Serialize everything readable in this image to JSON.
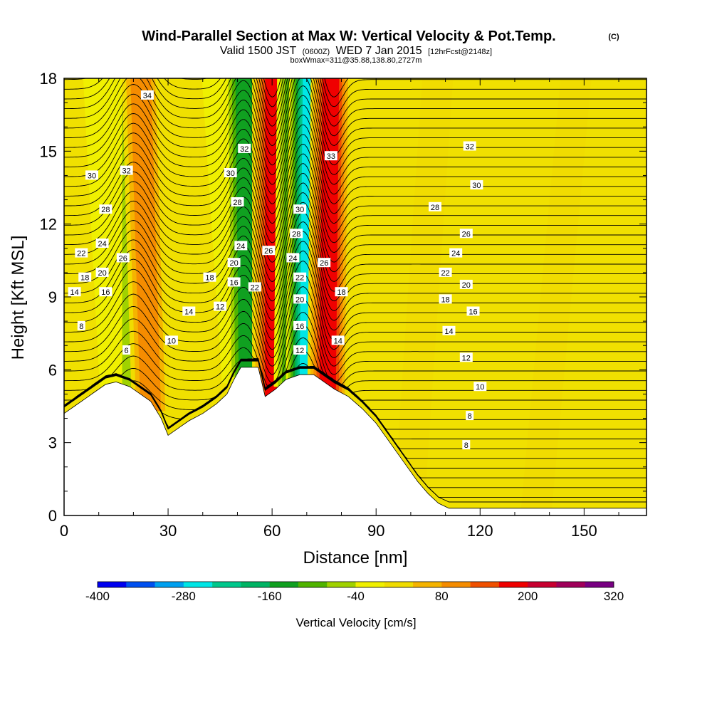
{
  "chart_data": {
    "type": "heatmap",
    "title": "Wind-Parallel Section at Max W: Vertical Velocity & Pot.Temp.",
    "title_mark": "(C)",
    "subtitle": {
      "valid": "Valid 1500 JST",
      "utc": "(0600Z)",
      "date": "WED 7 Jan 2015",
      "fcst": "[12hrFcst@2148z]",
      "box": "boxWmax=311@35.88,138.80,2727m"
    },
    "xlabel": "Distance [nm]",
    "ylabel": "Height [Kft MSL]",
    "xlim": [
      0,
      168
    ],
    "ylim": [
      0,
      18
    ],
    "x_ticks": [
      0,
      30,
      60,
      90,
      120,
      150
    ],
    "x_tick_labels": [
      "0",
      "30",
      "60",
      "90",
      "120",
      "150"
    ],
    "y_ticks": [
      0,
      3,
      6,
      9,
      12,
      15,
      18
    ],
    "y_tick_labels": [
      "0",
      "3",
      "6",
      "9",
      "12",
      "15",
      "18"
    ],
    "colorbar": {
      "label": "Vertical Velocity [cm/s]",
      "levels": [
        -400,
        -360,
        -320,
        -280,
        -240,
        -200,
        -160,
        -120,
        -80,
        -40,
        0,
        40,
        80,
        120,
        160,
        200,
        240,
        280,
        320
      ],
      "colors": [
        "#0000f0",
        "#0050f0",
        "#00a0f0",
        "#00e6e6",
        "#00c88c",
        "#00b464",
        "#10a020",
        "#50b400",
        "#a0d200",
        "#f0f000",
        "#f0dc00",
        "#f5b400",
        "#f58c00",
        "#f05000",
        "#f00000",
        "#c80030",
        "#a0005a",
        "#780082"
      ],
      "tick_labels": [
        "-400",
        "-280",
        "-160",
        "-40",
        "80",
        "200",
        "320"
      ],
      "tick_values": [
        -400,
        -280,
        -160,
        -40,
        80,
        200,
        320
      ]
    },
    "vertical_velocity_bands": [
      {
        "x_base": 15,
        "x_top": 10,
        "value": -70
      },
      {
        "x_base": 20,
        "x_top": 20,
        "value": -90
      },
      {
        "x_base": 25,
        "x_top": 22,
        "value": 140
      },
      {
        "x_base": 50,
        "x_top": 44,
        "value": -60
      },
      {
        "x_base": 53,
        "x_top": 52,
        "value": -180
      },
      {
        "x_base": 60,
        "x_top": 60,
        "value": 200
      },
      {
        "x_base": 66,
        "x_top": 67,
        "value": -150
      },
      {
        "x_base": 70,
        "x_top": 71,
        "value": -300
      },
      {
        "x_base": 76,
        "x_top": 77,
        "value": 220
      },
      {
        "x_base": 100,
        "x_top": 108,
        "value": 60
      },
      {
        "x_base": 136,
        "x_top": 148,
        "value": 60
      }
    ],
    "terrain": [
      {
        "x": 0,
        "z": 4.2
      },
      {
        "x": 3,
        "z": 4.5
      },
      {
        "x": 6,
        "z": 4.8
      },
      {
        "x": 9,
        "z": 5.1
      },
      {
        "x": 12,
        "z": 5.4
      },
      {
        "x": 15,
        "z": 5.5
      },
      {
        "x": 19,
        "z": 5.3
      },
      {
        "x": 22,
        "z": 5.0
      },
      {
        "x": 25,
        "z": 4.7
      },
      {
        "x": 28,
        "z": 4.0
      },
      {
        "x": 30,
        "z": 3.3
      },
      {
        "x": 33,
        "z": 3.6
      },
      {
        "x": 36,
        "z": 3.9
      },
      {
        "x": 40,
        "z": 4.2
      },
      {
        "x": 44,
        "z": 4.6
      },
      {
        "x": 47,
        "z": 5.0
      },
      {
        "x": 49,
        "z": 5.6
      },
      {
        "x": 51,
        "z": 6.1
      },
      {
        "x": 56,
        "z": 6.1
      },
      {
        "x": 58,
        "z": 4.9
      },
      {
        "x": 61,
        "z": 5.2
      },
      {
        "x": 64,
        "z": 5.6
      },
      {
        "x": 68,
        "z": 5.8
      },
      {
        "x": 72,
        "z": 5.8
      },
      {
        "x": 75,
        "z": 5.5
      },
      {
        "x": 78,
        "z": 5.2
      },
      {
        "x": 82,
        "z": 4.9
      },
      {
        "x": 86,
        "z": 4.4
      },
      {
        "x": 90,
        "z": 3.8
      },
      {
        "x": 93,
        "z": 3.2
      },
      {
        "x": 96,
        "z": 2.6
      },
      {
        "x": 99,
        "z": 2.0
      },
      {
        "x": 102,
        "z": 1.4
      },
      {
        "x": 105,
        "z": 0.9
      },
      {
        "x": 108,
        "z": 0.5
      },
      {
        "x": 111,
        "z": 0.3
      },
      {
        "x": 168,
        "z": 0.3
      }
    ],
    "pot_temp_contour_labels": [
      {
        "x": 24,
        "z": 17.3,
        "label": "34"
      },
      {
        "x": 8,
        "z": 14.0,
        "label": "30"
      },
      {
        "x": 18,
        "z": 14.2,
        "label": "32"
      },
      {
        "x": 12,
        "z": 12.6,
        "label": "28"
      },
      {
        "x": 11,
        "z": 11.2,
        "label": "24"
      },
      {
        "x": 5,
        "z": 10.8,
        "label": "22"
      },
      {
        "x": 17,
        "z": 10.6,
        "label": "26"
      },
      {
        "x": 11,
        "z": 10.0,
        "label": "20"
      },
      {
        "x": 6,
        "z": 9.8,
        "label": "18"
      },
      {
        "x": 12,
        "z": 9.2,
        "label": "16"
      },
      {
        "x": 3,
        "z": 9.2,
        "label": "14"
      },
      {
        "x": 5,
        "z": 7.8,
        "label": "8"
      },
      {
        "x": 18,
        "z": 6.8,
        "label": "6"
      },
      {
        "x": 31,
        "z": 7.2,
        "label": "10"
      },
      {
        "x": 36,
        "z": 8.4,
        "label": "14"
      },
      {
        "x": 45,
        "z": 8.6,
        "label": "12"
      },
      {
        "x": 42,
        "z": 9.8,
        "label": "18"
      },
      {
        "x": 49,
        "z": 9.6,
        "label": "16"
      },
      {
        "x": 49,
        "z": 10.4,
        "label": "20"
      },
      {
        "x": 51,
        "z": 11.1,
        "label": "24"
      },
      {
        "x": 50,
        "z": 12.9,
        "label": "28"
      },
      {
        "x": 48,
        "z": 14.1,
        "label": "30"
      },
      {
        "x": 52,
        "z": 15.1,
        "label": "32"
      },
      {
        "x": 55,
        "z": 9.4,
        "label": "22"
      },
      {
        "x": 59,
        "z": 10.9,
        "label": "26"
      },
      {
        "x": 68,
        "z": 12.6,
        "label": "30"
      },
      {
        "x": 67,
        "z": 11.6,
        "label": "28"
      },
      {
        "x": 66,
        "z": 10.6,
        "label": "24"
      },
      {
        "x": 68,
        "z": 9.8,
        "label": "22"
      },
      {
        "x": 68,
        "z": 8.9,
        "label": "20"
      },
      {
        "x": 68,
        "z": 7.8,
        "label": "16"
      },
      {
        "x": 68,
        "z": 6.8,
        "label": "12"
      },
      {
        "x": 77,
        "z": 14.8,
        "label": "33"
      },
      {
        "x": 75,
        "z": 10.4,
        "label": "26"
      },
      {
        "x": 80,
        "z": 9.2,
        "label": "18"
      },
      {
        "x": 79,
        "z": 7.2,
        "label": "14"
      },
      {
        "x": 117,
        "z": 15.2,
        "label": "32"
      },
      {
        "x": 119,
        "z": 13.6,
        "label": "30"
      },
      {
        "x": 107,
        "z": 12.7,
        "label": "28"
      },
      {
        "x": 116,
        "z": 11.6,
        "label": "26"
      },
      {
        "x": 113,
        "z": 10.8,
        "label": "24"
      },
      {
        "x": 110,
        "z": 10.0,
        "label": "22"
      },
      {
        "x": 116,
        "z": 9.5,
        "label": "20"
      },
      {
        "x": 110,
        "z": 8.9,
        "label": "18"
      },
      {
        "x": 118,
        "z": 8.4,
        "label": "16"
      },
      {
        "x": 111,
        "z": 7.6,
        "label": "14"
      },
      {
        "x": 116,
        "z": 6.5,
        "label": "12"
      },
      {
        "x": 120,
        "z": 5.3,
        "label": "10"
      },
      {
        "x": 117,
        "z": 4.1,
        "label": "8"
      },
      {
        "x": 116,
        "z": 2.9,
        "label": "8"
      }
    ]
  }
}
